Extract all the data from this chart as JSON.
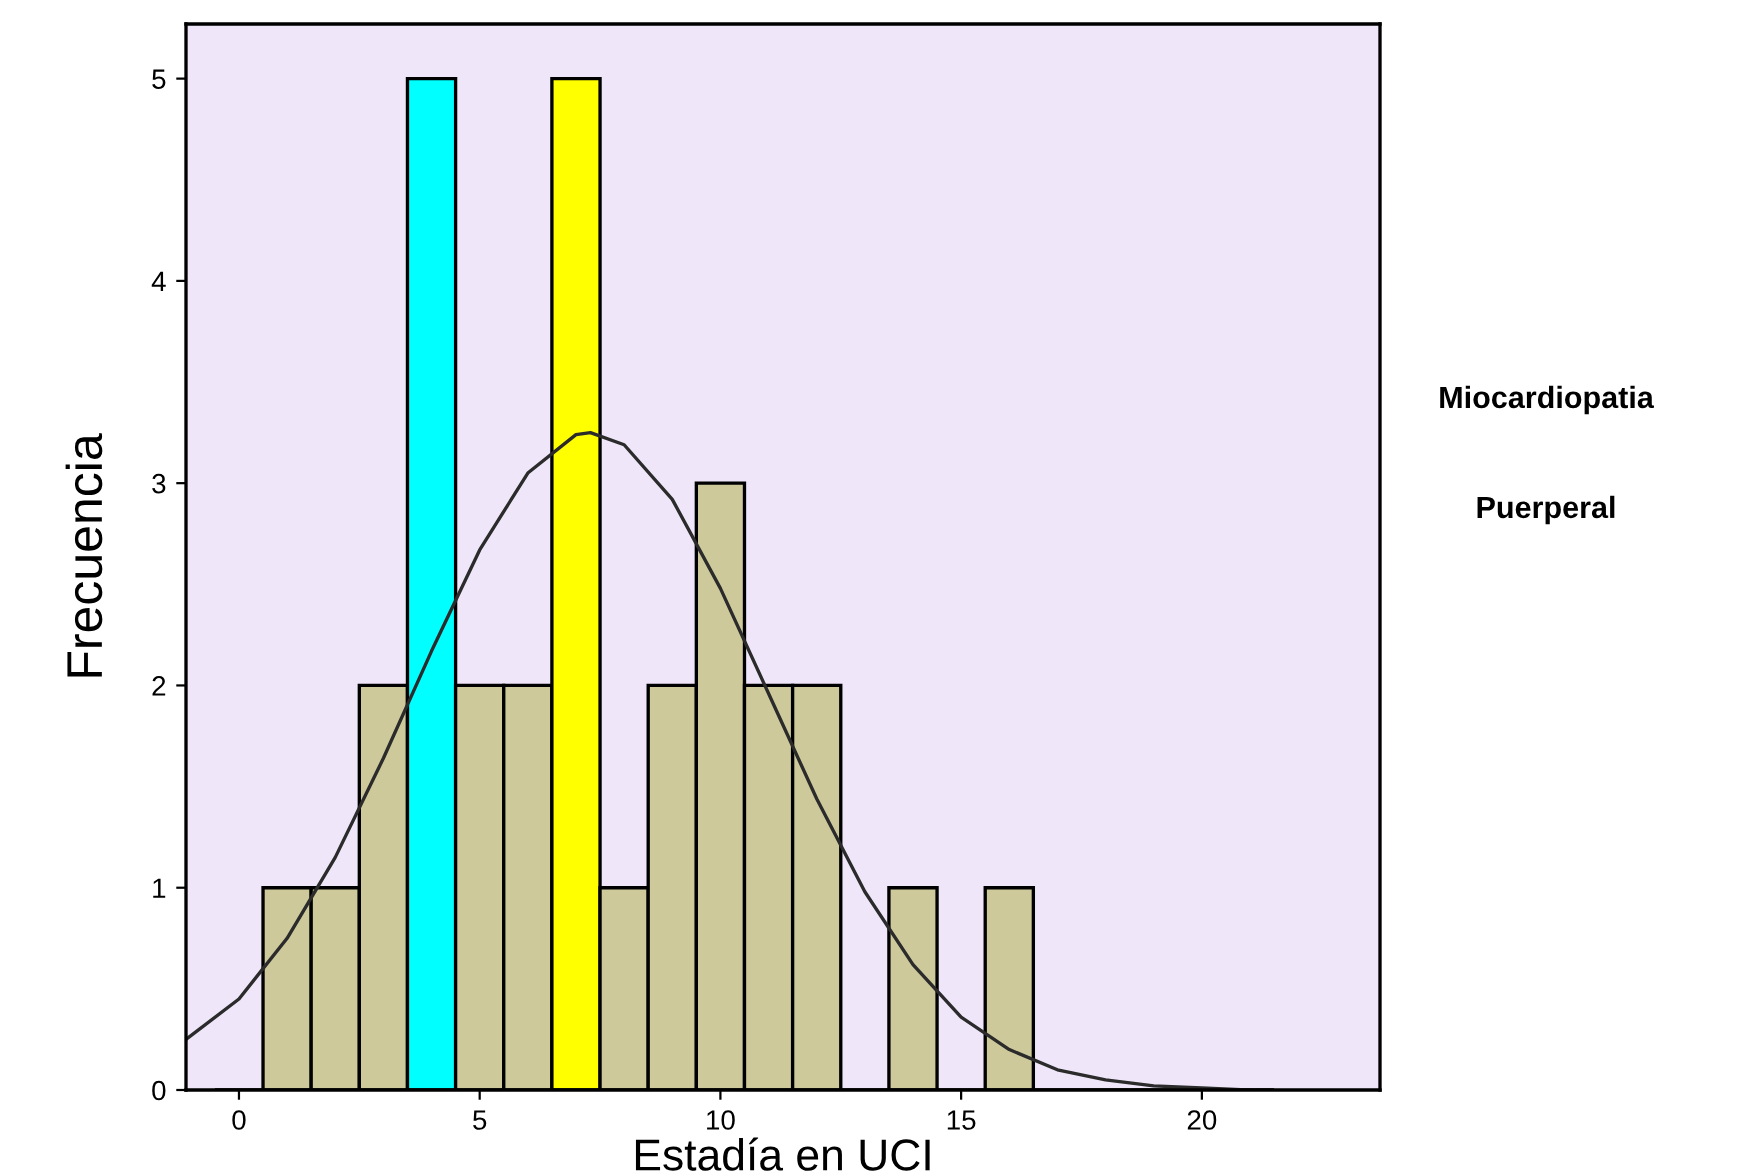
{
  "chart_data": {
    "type": "histogram",
    "xlabel": "Estadía en UCI",
    "ylabel": "Frecuencia",
    "annotations": [
      "Miocardiopatia",
      "Puerperal"
    ],
    "bins": [
      -0.5,
      0.5,
      1.5,
      2.5,
      3.5,
      4.5,
      5.5,
      6.5,
      7.5,
      8.5,
      9.5,
      10.5,
      11.5,
      12.5,
      13.5,
      14.5,
      15.5,
      16.5,
      17.5,
      18.5,
      19.5,
      20.5,
      21.5
    ],
    "values": [
      0,
      1,
      1,
      2,
      5,
      2,
      2,
      5,
      1,
      2,
      3,
      2,
      2,
      0,
      1,
      0,
      1,
      0,
      0,
      0,
      0,
      0
    ],
    "colors": [
      "#cdc99b",
      "#cdc99b",
      "#cdc99b",
      "#cdc99b",
      "#00ffff",
      "#cdc99b",
      "#cdc99b",
      "#ffff00",
      "#cdc99b",
      "#cdc99b",
      "#cdc99b",
      "#cdc99b",
      "#cdc99b",
      "#cdc99b",
      "#cdc99b",
      "#cdc99b",
      "#cdc99b",
      "#cdc99b",
      "#cdc99b",
      "#cdc99b",
      "#cdc99b",
      "#cdc99b"
    ],
    "series": [
      {
        "type": "line",
        "color": "#2b2b2b",
        "x": [
          -1.1,
          0,
          1,
          2,
          3,
          4,
          5,
          6,
          7,
          7.3,
          8,
          9,
          10,
          11,
          12,
          13,
          14,
          15,
          16,
          17,
          18,
          19,
          20,
          21
        ],
        "values": [
          0.25,
          0.45,
          0.75,
          1.15,
          1.64,
          2.17,
          2.67,
          3.05,
          3.24,
          3.25,
          3.19,
          2.92,
          2.48,
          1.96,
          1.44,
          0.98,
          0.62,
          0.36,
          0.2,
          0.1,
          0.05,
          0.02,
          0.01,
          0.0
        ]
      }
    ],
    "xlim": [
      -1.1,
      23.7
    ],
    "ylim": [
      0,
      5.27
    ],
    "xticks": [
      0,
      5,
      10,
      15,
      20
    ],
    "yticks": [
      0,
      1,
      2,
      3,
      4,
      5
    ],
    "grid": false,
    "legend": false
  }
}
